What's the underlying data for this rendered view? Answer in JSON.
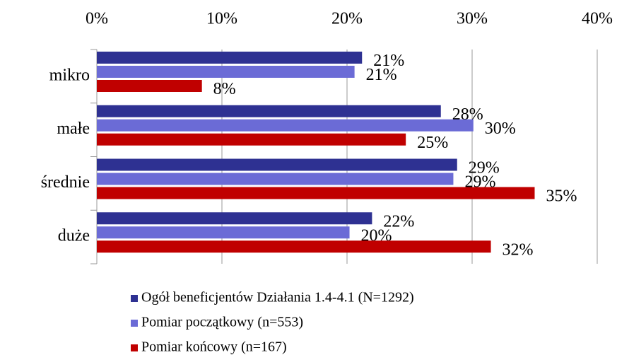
{
  "chart_data": {
    "type": "hbar",
    "categories": [
      "mikro",
      "małe",
      "średnie",
      "duże"
    ],
    "series": [
      {
        "name": "Ogół beneficjentów Działania 1.4-4.1 (N=1292)",
        "color": "#2e3192",
        "values": [
          21.2,
          27.5,
          28.8,
          22.0
        ],
        "value_labels": [
          "21%",
          "28%",
          "29%",
          "22%"
        ]
      },
      {
        "name": "Pomiar początkowy (n=553)",
        "color": "#6b6bd6",
        "values": [
          20.6,
          30.1,
          28.5,
          20.2
        ],
        "value_labels": [
          "21%",
          "30%",
          "29%",
          "20%"
        ]
      },
      {
        "name": "Pomiar końcowy (n=167)",
        "color": "#c00000",
        "values": [
          8.4,
          24.7,
          35.0,
          31.5
        ],
        "value_labels": [
          "8%",
          "25%",
          "35%",
          "32%"
        ]
      }
    ],
    "xlim": [
      0,
      40
    ],
    "xticks": [
      {
        "value": 0,
        "label": "0%"
      },
      {
        "value": 10,
        "label": "10%"
      },
      {
        "value": 20,
        "label": "20%"
      },
      {
        "value": 30,
        "label": "30%"
      },
      {
        "value": 40,
        "label": "40%"
      }
    ],
    "grid": true,
    "legend": "bottom"
  }
}
